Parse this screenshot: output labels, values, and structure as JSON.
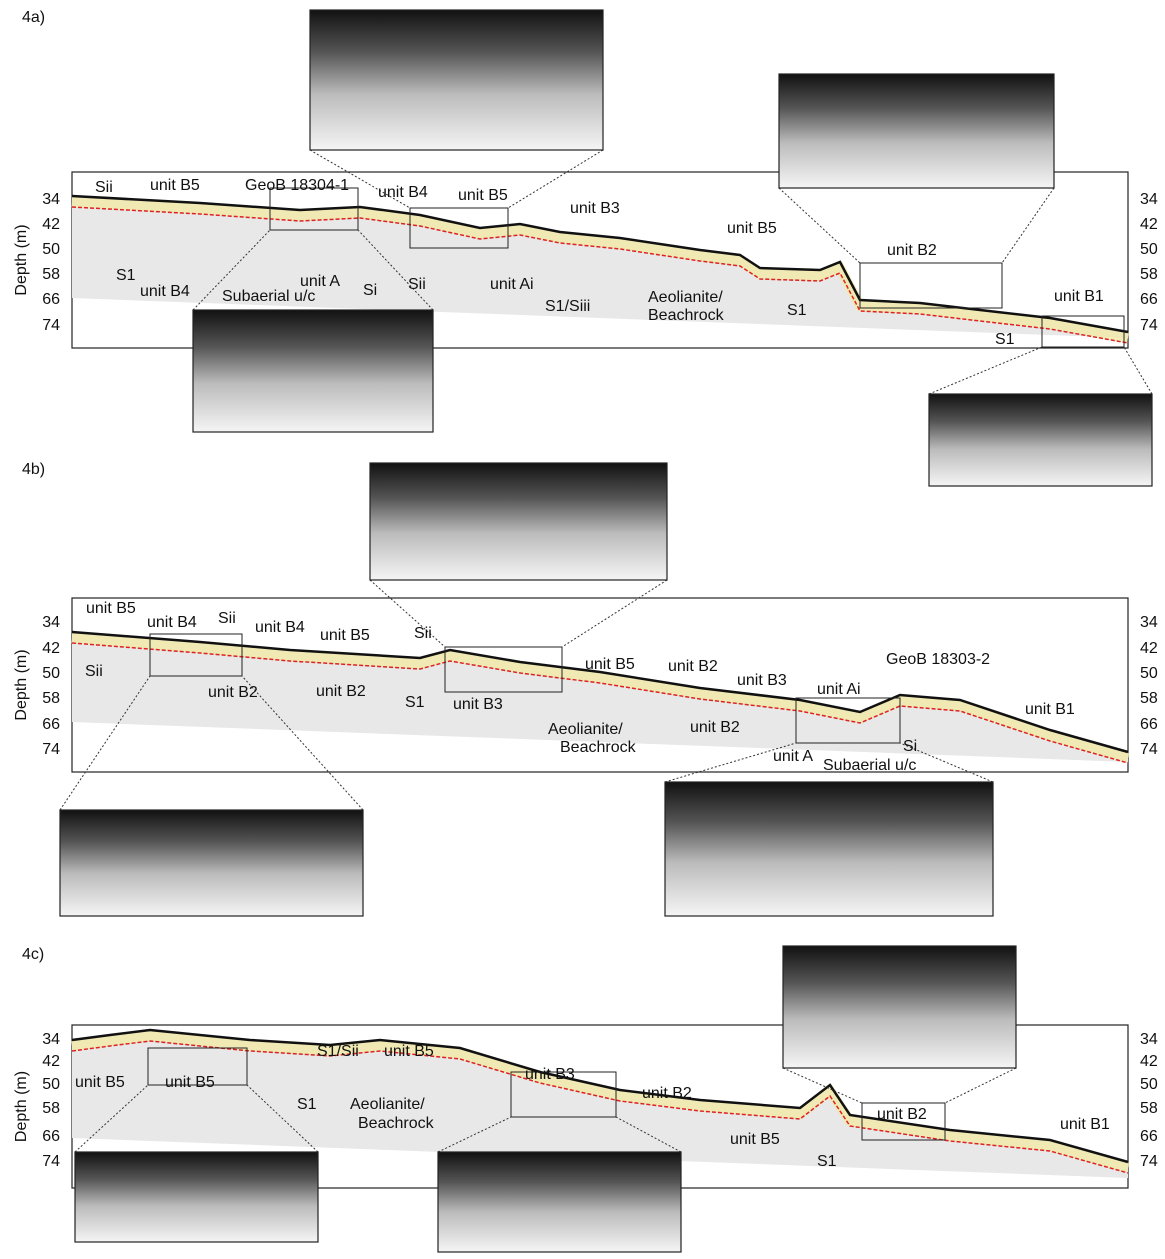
{
  "panels": [
    {
      "label": "4a)",
      "axis_label": "Depth (m)",
      "ticks": [
        34,
        42,
        50,
        58,
        66,
        74
      ],
      "annotations": [
        "Sii",
        "unit B5",
        "GeoB 18304-1",
        "unit B4",
        "unit B5",
        "unit B3",
        "S1",
        "unit B4",
        "Subaerial u/c",
        "unit A",
        "Si",
        "Sii",
        "unit Ai",
        "S1/Siii",
        "unit B5",
        "Aeolianite/",
        "Beachrock",
        "unit B2",
        "S1",
        "S1",
        "unit B1"
      ]
    },
    {
      "label": "4b)",
      "axis_label": "Depth (m)",
      "ticks": [
        34,
        42,
        50,
        58,
        66,
        74
      ],
      "annotations": [
        "unit B5",
        "unit B4",
        "Sii",
        "unit B4",
        "unit B5",
        "Sii",
        "Sii",
        "unit B2",
        "unit B2",
        "S1",
        "unit B3",
        "unit B5",
        "unit B2",
        "Aeolianite/",
        "Beachrock",
        "unit B3",
        "GeoB 18303-2",
        "unit Ai",
        "unit B2",
        "unit B1",
        "unit A",
        "Si",
        "Subaerial u/c"
      ]
    },
    {
      "label": "4c)",
      "axis_label": "Depth (m)",
      "ticks": [
        34,
        42,
        50,
        58,
        66,
        74
      ],
      "annotations": [
        "S1/Sii",
        "unit B5",
        "unit B3",
        "unit B5",
        "unit B5",
        "S1",
        "Aeolianite/",
        "Beachrock",
        "unit B2",
        "unit B5",
        "S1",
        "unit B2",
        "unit B1"
      ]
    }
  ]
}
